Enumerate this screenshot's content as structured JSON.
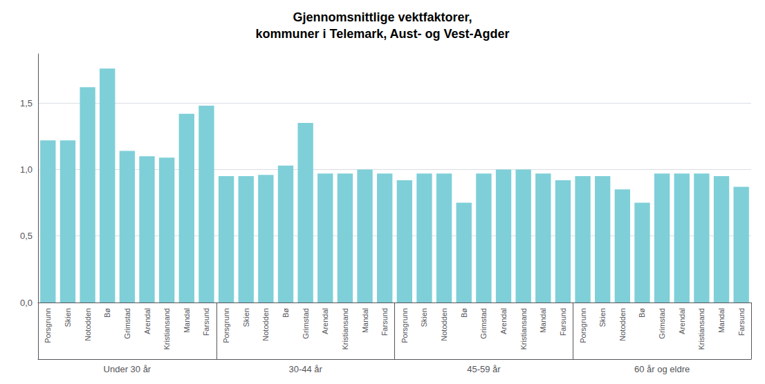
{
  "chart_data": {
    "type": "bar",
    "title": "Gjennomsnittlige vektfaktorer,\nkommuner i Telemark, Aust- og Vest-Agder",
    "color": "#7ECFD8",
    "groups": [
      {
        "label": "Under 30 år",
        "categories": [
          "Porsgrunn",
          "Skien",
          "Notodden",
          "Bø",
          "Grimstad",
          "Arendal",
          "Kristiansand",
          "Mandal",
          "Farsund"
        ],
        "values": [
          1.22,
          1.22,
          1.62,
          1.76,
          1.14,
          1.1,
          1.09,
          1.42,
          1.48
        ]
      },
      {
        "label": "30-44 år",
        "categories": [
          "Porsgrunn",
          "Skien",
          "Notodden",
          "Bø",
          "Grimstad",
          "Arendal",
          "Kristiansand",
          "Mandal",
          "Farsund"
        ],
        "values": [
          0.95,
          0.95,
          0.96,
          1.03,
          1.35,
          0.97,
          0.97,
          1.0,
          0.97
        ]
      },
      {
        "label": "45-59 år",
        "categories": [
          "Porsgrunn",
          "Skien",
          "Notodden",
          "Bø",
          "Grimstad",
          "Arendal",
          "Kristiansand",
          "Mandal",
          "Farsund"
        ],
        "values": [
          0.92,
          0.97,
          0.97,
          0.75,
          0.97,
          1.0,
          1.0,
          0.97,
          0.92
        ]
      },
      {
        "label": "60 år og eldre",
        "categories": [
          "Porsgrunn",
          "Skien",
          "Notodden",
          "Bø",
          "Grimstad",
          "Arendal",
          "Kristiansand",
          "Mandal",
          "Farsund"
        ],
        "values": [
          0.95,
          0.95,
          0.85,
          0.75,
          0.97,
          0.97,
          0.97,
          0.95,
          0.87
        ]
      }
    ],
    "ylim": [
      0,
      1.87
    ],
    "yticks": [
      {
        "value": 0.0,
        "label": "0,0"
      },
      {
        "value": 0.5,
        "label": "0,5"
      },
      {
        "value": 1.0,
        "label": "1,0"
      },
      {
        "value": 1.5,
        "label": "1,5"
      }
    ],
    "grid": true
  }
}
